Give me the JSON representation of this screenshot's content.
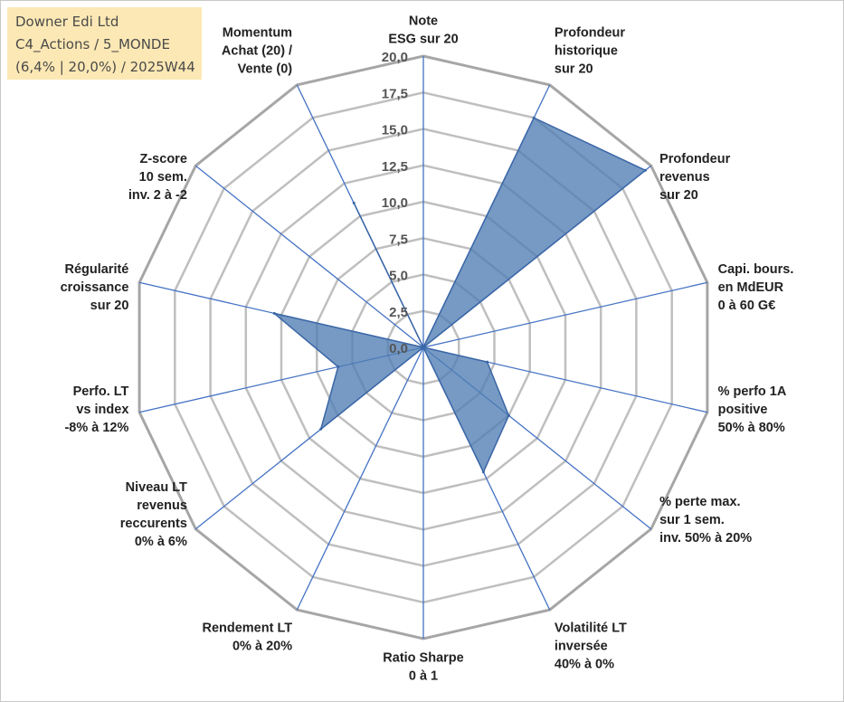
{
  "info": {
    "line1": "Downer Edi Ltd",
    "line2": "C4_Actions / 5_MONDE",
    "line3": "(6,4% | 20,0%) / 2025W44"
  },
  "colors": {
    "series_fill": "#4f7db3",
    "series_line": "#3a66a6",
    "spoke": "#4472c4",
    "grid": "#bfbfbf",
    "grid_outer": "#a6a6a6"
  },
  "chart_data": {
    "type": "radar",
    "rmin": 0,
    "rmax": 20,
    "tick_step": 2.5,
    "tick_labels": [
      "0,0",
      "2,5",
      "5,0",
      "7,5",
      "10,0",
      "12,5",
      "15,0",
      "17,5",
      "20,0"
    ],
    "grid": true,
    "axes": [
      [
        "Note",
        "ESG sur 20"
      ],
      [
        "Profondeur",
        "historique",
        "sur 20"
      ],
      [
        "Profondeur",
        "revenus",
        "sur 20"
      ],
      [
        "Capi. bours.",
        "en MdEUR",
        "0 à 60 G€"
      ],
      [
        "% perfo 1A",
        "positive",
        "50% à 80%"
      ],
      [
        "% perte max.",
        "sur 1 sem.",
        "inv. 50% à 20%"
      ],
      [
        "Volatilité LT",
        "inversée",
        "40% à 0%"
      ],
      [
        "Ratio Sharpe",
        "0 à 1"
      ],
      [
        "Rendement LT",
        "0% à 20%"
      ],
      [
        "Niveau LT",
        "revenus",
        "reccurents",
        "0% à 6%"
      ],
      [
        "Perfo. LT",
        "vs index",
        "-8% à 12%"
      ],
      [
        "Régularité",
        "croissance",
        "sur 20"
      ],
      [
        "Z-score",
        "10 sem.",
        "inv. 2 à -2"
      ],
      [
        "Momentum",
        "Achat (20) /",
        "Vente (0)"
      ]
    ],
    "series": [
      {
        "values": [
          0,
          17.5,
          19.5,
          0,
          4.5,
          7.5,
          9.5,
          0,
          0,
          9,
          6,
          10.5,
          0,
          11
        ]
      }
    ]
  }
}
